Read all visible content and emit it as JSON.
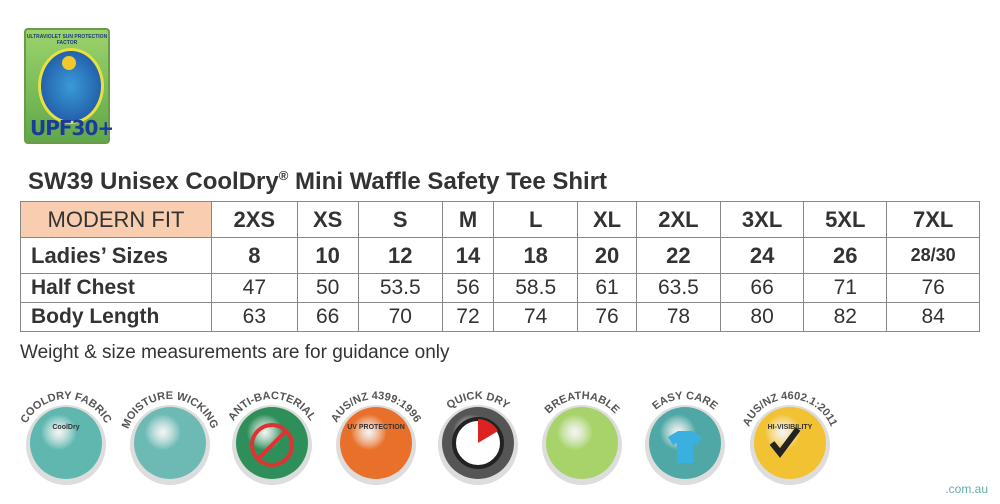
{
  "upf_badge": {
    "top_text": "ULTRAVIOLET SUN PROTECTION FACTOR",
    "label": "UPF30+"
  },
  "title": "SW39 Unisex CoolDry",
  "title_reg": "®",
  "title_rest": " Mini Waffle Safety Tee Shirt",
  "table": {
    "header": [
      "MODERN FIT",
      "2XS",
      "XS",
      "S",
      "M",
      "L",
      "XL",
      "2XL",
      "3XL",
      "5XL",
      "7XL"
    ],
    "rows": [
      {
        "label": "Ladies’ Sizes",
        "values": [
          "8",
          "10",
          "12",
          "14",
          "18",
          "20",
          "22",
          "24",
          "26",
          "28/30"
        ]
      },
      {
        "label": "Half Chest",
        "values": [
          "47",
          "50",
          "53.5",
          "56",
          "58.5",
          "61",
          "63.5",
          "66",
          "71",
          "76"
        ]
      },
      {
        "label": "Body Length",
        "values": [
          "63",
          "66",
          "70",
          "72",
          "74",
          "76",
          "78",
          "80",
          "82",
          "84"
        ]
      }
    ]
  },
  "note": "Weight & size measurements are for guidance only",
  "badges": [
    {
      "label": "COOLDRY FABRIC",
      "inner": "CoolDry",
      "color": "#5fb7b0",
      "icon": "cooldry-icon"
    },
    {
      "label": "MOISTURE WICKING",
      "inner": "",
      "color": "#6dbab5",
      "icon": "fabric-layers-icon"
    },
    {
      "label": "ANTI-BACTERIAL",
      "inner": "",
      "color": "#2f8f5a",
      "icon": "no-bacteria-icon"
    },
    {
      "label": "AUS/NZ 4399:1996",
      "inner": "UV PROTECTION",
      "color": "#e8702a",
      "icon": "uv-protection-icon"
    },
    {
      "label": "QUICK DRY",
      "inner": "",
      "color": "#555555",
      "icon": "timer-icon"
    },
    {
      "label": "BREATHABLE",
      "inner": "",
      "color": "#a7d36a",
      "icon": "breathable-icon"
    },
    {
      "label": "EASY CARE",
      "inner": "",
      "color": "#4fa8a6",
      "icon": "shirt-hanger-icon"
    },
    {
      "label": "AUS/NZ 4602.1:2011",
      "inner": "HI-VISIBILITY",
      "color": "#f2c232",
      "icon": "checkmark-icon"
    }
  ],
  "site": ".com.au"
}
